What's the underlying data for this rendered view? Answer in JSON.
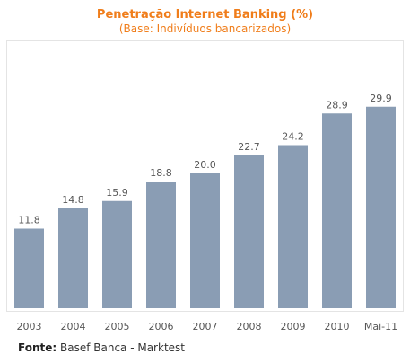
{
  "chart_data": {
    "type": "bar",
    "title": "Penetração Internet Banking (%)",
    "subtitle": "(Base: Indivíduos bancarizados)",
    "categories": [
      "2003",
      "2004",
      "2005",
      "2006",
      "2007",
      "2008",
      "2009",
      "2010",
      "Mai-11"
    ],
    "values": [
      11.8,
      14.8,
      15.9,
      18.8,
      20.0,
      22.7,
      24.2,
      28.9,
      29.9
    ],
    "value_labels": [
      "11.8",
      "14.8",
      "15.9",
      "18.8",
      "20.0",
      "22.7",
      "24.2",
      "28.9",
      "29.9"
    ],
    "xlabel": "",
    "ylabel": "",
    "ylim": [
      0,
      36
    ],
    "grid": false,
    "bar_color": "#8a9db4",
    "title_color": "#f07d1a"
  },
  "source": {
    "label": "Fonte:",
    "text": " Basef Banca - Marktest"
  }
}
